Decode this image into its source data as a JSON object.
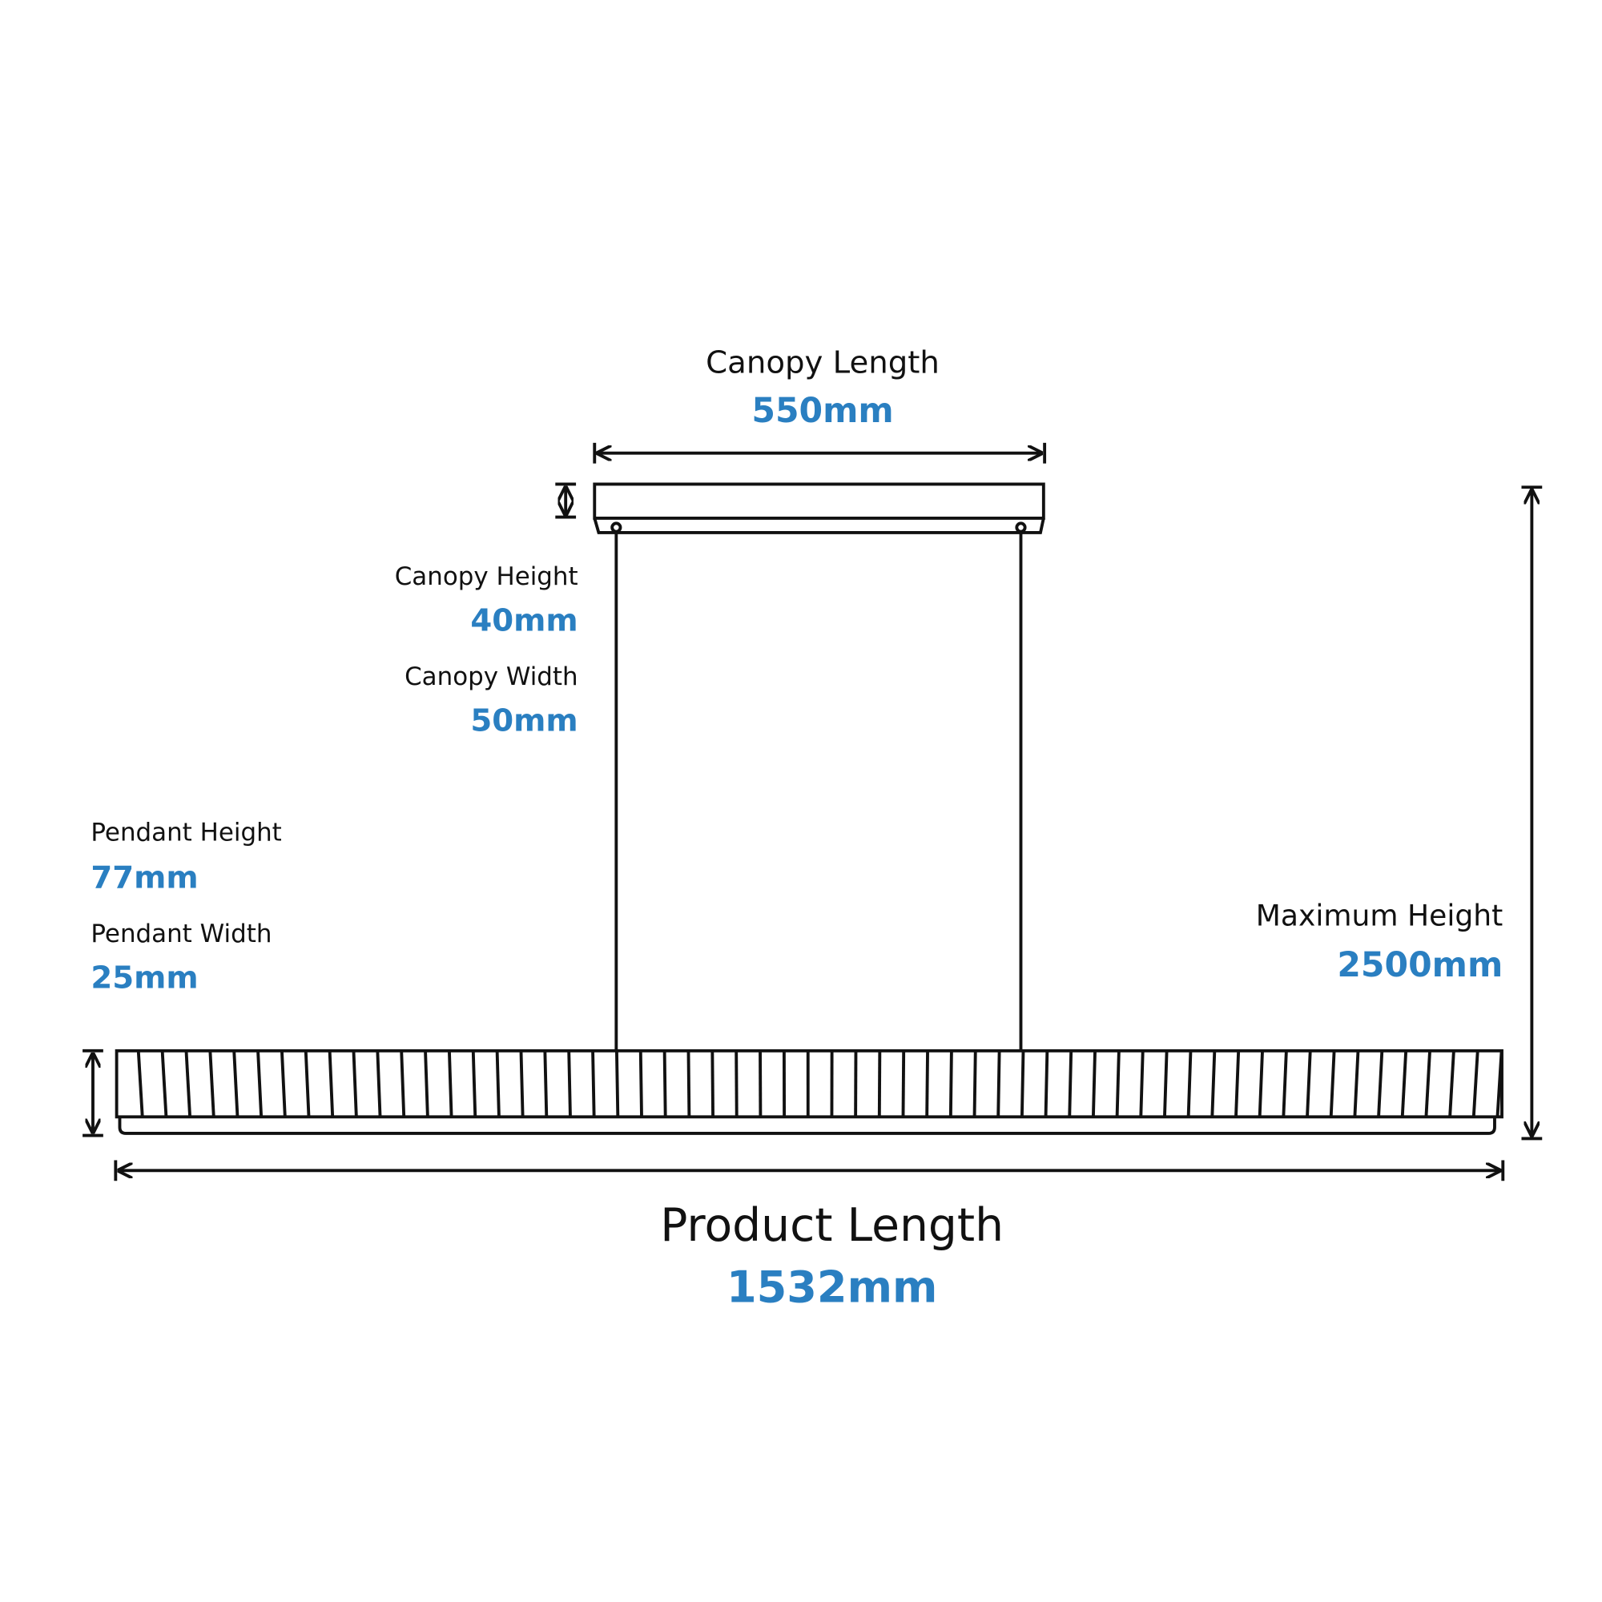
{
  "dimensions": {
    "canopy_length": {
      "label": "Canopy Length",
      "value": "550mm"
    },
    "canopy_height": {
      "label": "Canopy Height",
      "value": "40mm"
    },
    "canopy_width": {
      "label": "Canopy Width",
      "value": "50mm"
    },
    "pendant_height": {
      "label": "Pendant Height",
      "value": "77mm"
    },
    "pendant_width": {
      "label": "Pendant Width",
      "value": "25mm"
    },
    "maximum_height": {
      "label": "Maximum Height",
      "value": "2500mm"
    },
    "product_length": {
      "label": "Product Length",
      "value": "1532mm"
    }
  }
}
